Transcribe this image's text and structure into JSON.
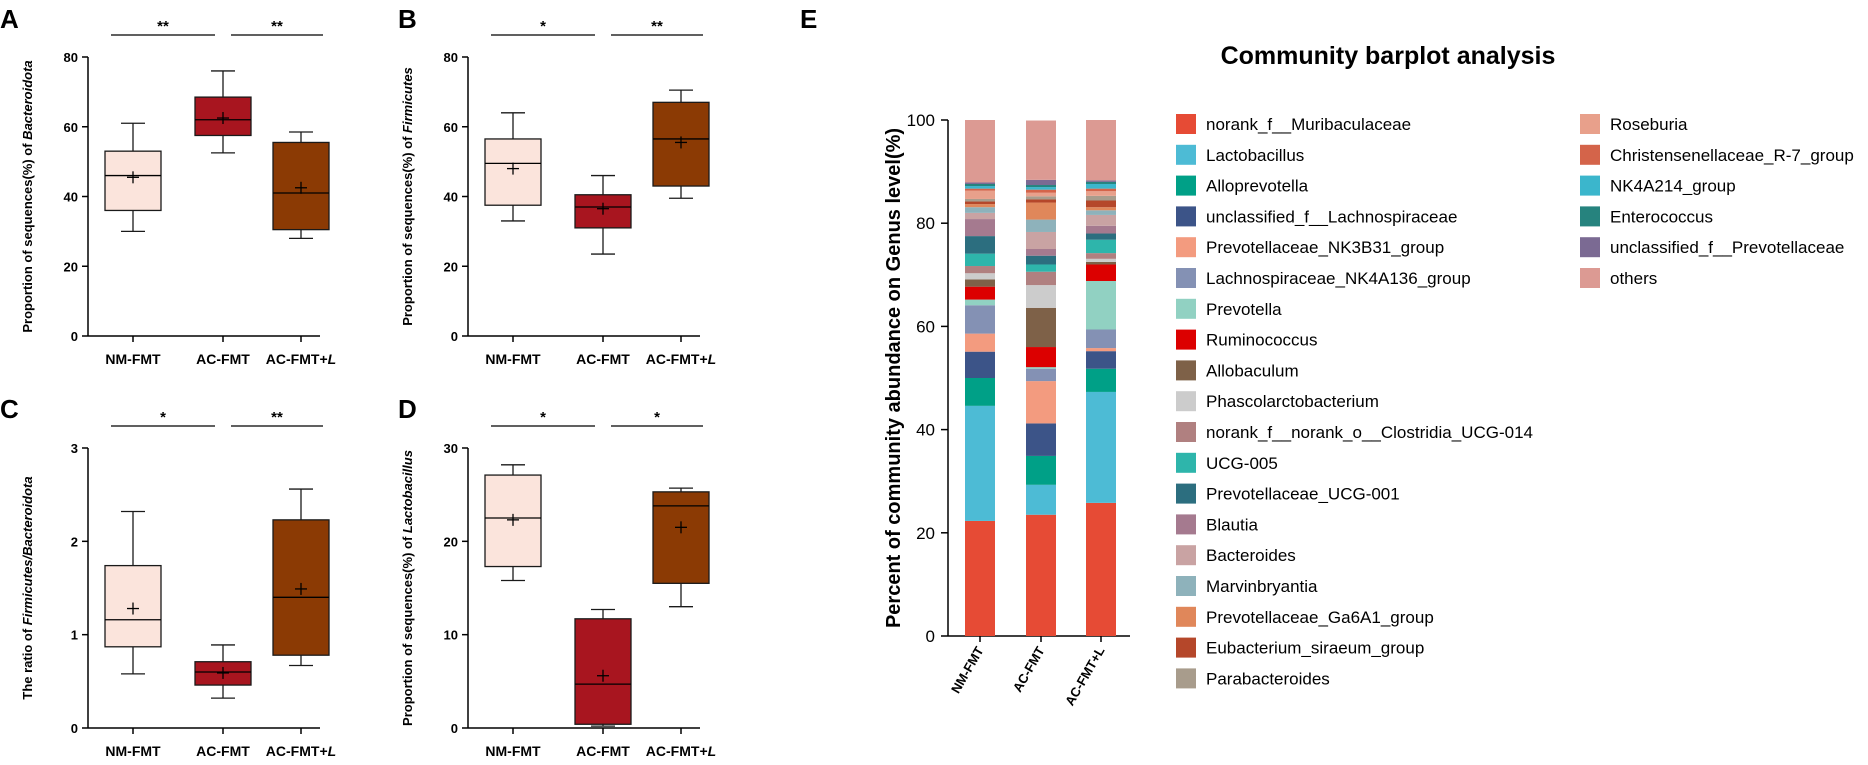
{
  "chart_data": [
    {
      "id": "A",
      "type": "box",
      "panel_label": "A",
      "ylabel_prefix": "Proportion of sequences(%) of ",
      "ylabel_italic": "Bacteroidota",
      "ylabel_suffix": "",
      "ylim": [
        0,
        80
      ],
      "yticks": [
        0,
        20,
        40,
        60,
        80
      ],
      "categories": [
        {
          "prefix": "NM-FMT",
          "italic": ""
        },
        {
          "prefix": "AC-FMT",
          "italic": ""
        },
        {
          "prefix": "AC-FMT+",
          "italic": "L"
        }
      ],
      "boxes": [
        {
          "min": 30,
          "q1": 36,
          "median": 46,
          "q3": 53,
          "max": 61,
          "mean": 45.5
        },
        {
          "min": 52.5,
          "q1": 57.5,
          "median": 62,
          "q3": 68.5,
          "max": 76,
          "mean": 62.5
        },
        {
          "min": 28,
          "q1": 30.5,
          "median": 41,
          "q3": 55.5,
          "max": 58.5,
          "mean": 42.5
        }
      ],
      "significance": [
        {
          "from": 0,
          "to": 1,
          "label": "**"
        },
        {
          "from": 1,
          "to": 2,
          "label": "**"
        }
      ]
    },
    {
      "id": "B",
      "type": "box",
      "panel_label": "B",
      "ylabel_prefix": "Proportion of sequences(%) of ",
      "ylabel_italic": "Firmicutes",
      "ylabel_suffix": "",
      "ylim": [
        0,
        80
      ],
      "yticks": [
        0,
        20,
        40,
        60,
        80
      ],
      "categories": [
        {
          "prefix": "NM-FMT",
          "italic": ""
        },
        {
          "prefix": "AC-FMT",
          "italic": ""
        },
        {
          "prefix": "AC-FMT+",
          "italic": "L"
        }
      ],
      "boxes": [
        {
          "min": 33,
          "q1": 37.5,
          "median": 49.5,
          "q3": 56.5,
          "max": 64,
          "mean": 48
        },
        {
          "min": 23.5,
          "q1": 31,
          "median": 37,
          "q3": 40.5,
          "max": 46,
          "mean": 36.5
        },
        {
          "min": 39.5,
          "q1": 43,
          "median": 56.5,
          "q3": 67,
          "max": 70.5,
          "mean": 55.5
        }
      ],
      "significance": [
        {
          "from": 0,
          "to": 1,
          "label": "*"
        },
        {
          "from": 1,
          "to": 2,
          "label": "**"
        }
      ]
    },
    {
      "id": "C",
      "type": "box",
      "panel_label": "C",
      "ylabel_prefix": "The ratio of ",
      "ylabel_italic": "Firmicutes/Bacteroidota",
      "ylabel_suffix": "",
      "ylim": [
        0,
        3
      ],
      "yticks": [
        0,
        1,
        2,
        3
      ],
      "categories": [
        {
          "prefix": "NM-FMT",
          "italic": ""
        },
        {
          "prefix": "AC-FMT",
          "italic": ""
        },
        {
          "prefix": "AC-FMT+",
          "italic": "L"
        }
      ],
      "boxes": [
        {
          "min": 0.58,
          "q1": 0.87,
          "median": 1.16,
          "q3": 1.74,
          "max": 2.32,
          "mean": 1.28
        },
        {
          "min": 0.32,
          "q1": 0.46,
          "median": 0.6,
          "q3": 0.71,
          "max": 0.89,
          "mean": 0.59
        },
        {
          "min": 0.67,
          "q1": 0.78,
          "median": 1.4,
          "q3": 2.23,
          "max": 2.56,
          "mean": 1.49
        }
      ],
      "significance": [
        {
          "from": 0,
          "to": 1,
          "label": "*"
        },
        {
          "from": 1,
          "to": 2,
          "label": "**"
        }
      ]
    },
    {
      "id": "D",
      "type": "box",
      "panel_label": "D",
      "ylabel_prefix": "Proportion of sequences(%) of ",
      "ylabel_italic": "Lactobacillus",
      "ylabel_suffix": "",
      "ylim": [
        0,
        30
      ],
      "yticks": [
        0,
        10,
        20,
        30
      ],
      "categories": [
        {
          "prefix": "NM-FMT",
          "italic": ""
        },
        {
          "prefix": "AC-FMT",
          "italic": ""
        },
        {
          "prefix": "AC-FMT+",
          "italic": "L"
        }
      ],
      "boxes": [
        {
          "min": 15.8,
          "q1": 17.3,
          "median": 22.5,
          "q3": 27.1,
          "max": 28.2,
          "mean": 22.3
        },
        {
          "min": 0.2,
          "q1": 0.4,
          "median": 4.7,
          "q3": 11.7,
          "max": 12.7,
          "mean": 5.6
        },
        {
          "min": 13,
          "q1": 15.5,
          "median": 23.8,
          "q3": 25.3,
          "max": 25.7,
          "mean": 21.5
        }
      ],
      "significance": [
        {
          "from": 0,
          "to": 1,
          "label": "*"
        },
        {
          "from": 1,
          "to": 2,
          "label": "*"
        }
      ]
    },
    {
      "id": "E",
      "type": "bar",
      "stacked": true,
      "panel_label": "E",
      "title": "Community barplot analysis",
      "ylabel": "Percent of community abundance on Genus level(%)",
      "ylim": [
        0,
        100
      ],
      "yticks": [
        0,
        20,
        40,
        60,
        80,
        100
      ],
      "categories": [
        "NM-FMT",
        "AC-FMT",
        "AC-FMT+L"
      ],
      "series": [
        {
          "name": "norank_f__Muribaculaceae",
          "color": "#e64b35",
          "values": [
            22.3,
            23.5,
            25.8
          ]
        },
        {
          "name": "Lactobacillus",
          "color": "#4dbbd5",
          "values": [
            22.3,
            5.8,
            21.5
          ]
        },
        {
          "name": "Alloprevotella",
          "color": "#00a087",
          "values": [
            5.4,
            5.6,
            4.5
          ]
        },
        {
          "name": "unclassified_f__Lachnospiraceae",
          "color": "#3c5488",
          "values": [
            5.1,
            6.3,
            3.4
          ]
        },
        {
          "name": "Prevotellaceae_NK3B31_group",
          "color": "#f39b7f",
          "values": [
            3.5,
            8.2,
            0.6
          ]
        },
        {
          "name": "Lachnospiraceae_NK4A136_group",
          "color": "#8491b4",
          "values": [
            5.5,
            2.4,
            3.6
          ]
        },
        {
          "name": "Prevotella",
          "color": "#91d1c2",
          "values": [
            1.1,
            0.3,
            9.4
          ]
        },
        {
          "name": "Ruminococcus",
          "color": "#dc0000",
          "values": [
            2.5,
            3.9,
            3.2
          ]
        },
        {
          "name": "Allobaculum",
          "color": "#7e6148",
          "values": [
            1.4,
            7.6,
            0.5
          ]
        },
        {
          "name": "Phascolarctobacterium",
          "color": "#cccccc",
          "values": [
            1.2,
            4.4,
            0.6
          ]
        },
        {
          "name": "norank_f__norank_o__Clostridia_UCG-014",
          "color": "#b08080",
          "values": [
            1.4,
            2.6,
            1.1
          ]
        },
        {
          "name": "UCG-005",
          "color": "#2eb5ab",
          "values": [
            2.4,
            1.4,
            2.6
          ]
        },
        {
          "name": "Prevotellaceae_UCG-001",
          "color": "#2c6e7f",
          "values": [
            3.4,
            1.7,
            1.2
          ]
        },
        {
          "name": "Blautia",
          "color": "#a57a8f",
          "values": [
            3.3,
            1.3,
            1.5
          ]
        },
        {
          "name": "Bacteroides",
          "color": "#c9a3a3",
          "values": [
            1.2,
            3.3,
            2.1
          ]
        },
        {
          "name": "Marvinbryantia",
          "color": "#8eb2bb",
          "values": [
            1.1,
            2.4,
            0.9
          ]
        },
        {
          "name": "Prevotellaceae_Ga6A1_group",
          "color": "#e0875a",
          "values": [
            0.6,
            3.3,
            0.6
          ]
        },
        {
          "name": "Eubacterium_siraeum_group",
          "color": "#b5472a",
          "values": [
            0.5,
            0.6,
            1.3
          ]
        },
        {
          "name": "Parabacteroides",
          "color": "#a89c8c",
          "values": [
            0.5,
            0.6,
            0.9
          ]
        },
        {
          "name": "Roseburia",
          "color": "#e8a08b",
          "values": [
            1.6,
            0.7,
            0.9
          ]
        },
        {
          "name": "Christensenellaceae_R-7_group",
          "color": "#d4644a",
          "values": [
            0.4,
            0.6,
            0.5
          ]
        },
        {
          "name": "NK4A214_group",
          "color": "#3bb6cc",
          "values": [
            0.5,
            0.5,
            0.9
          ]
        },
        {
          "name": "Enterococcus",
          "color": "#26837e",
          "values": [
            0.4,
            0.4,
            0.4
          ]
        },
        {
          "name": "unclassified_f__Prevotellaceae",
          "color": "#7b6a93",
          "values": [
            0.3,
            1.0,
            0.3
          ]
        },
        {
          "name": "others",
          "color": "#dc9a93",
          "values": [
            12.1,
            11.5,
            11.7
          ]
        }
      ]
    }
  ],
  "colors": {
    "nm": "#fbe4dc",
    "ac": "#a8151f",
    "acl": "#8b3a04",
    "axis": "#000000"
  }
}
